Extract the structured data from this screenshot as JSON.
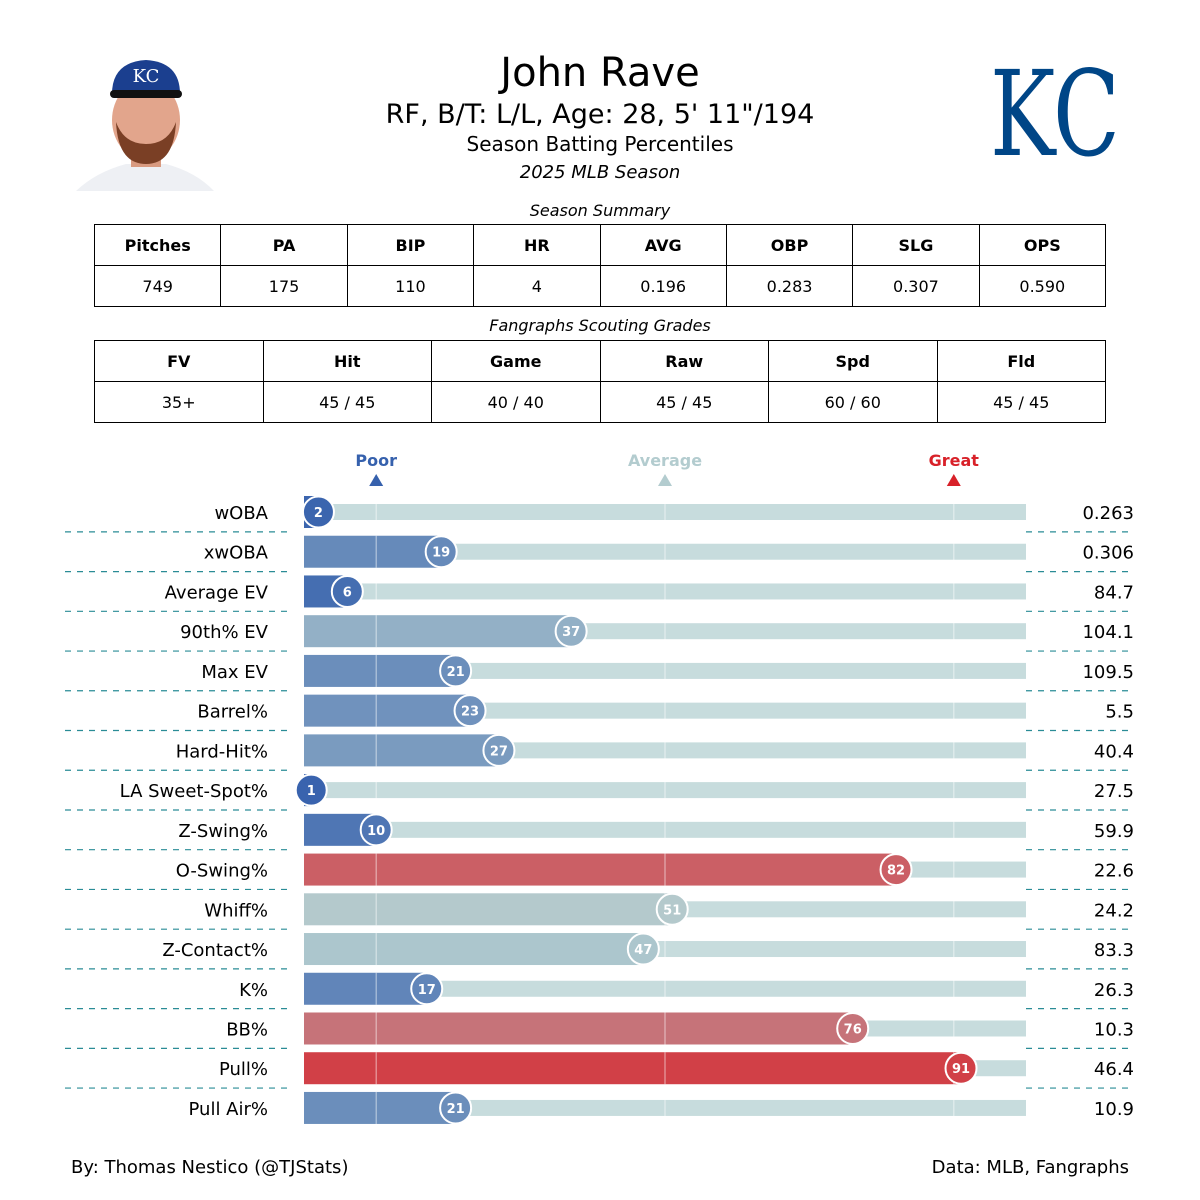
{
  "header": {
    "name": "John Rave",
    "bio": "RF, B/T: L/L, Age: 28, 5' 11\"/194",
    "subtitle": "Season Batting Percentiles",
    "season": "2025 MLB Season",
    "team_logo_text": "KC",
    "team_color": "#004687"
  },
  "season_summary": {
    "title": "Season Summary",
    "headers": [
      "Pitches",
      "PA",
      "BIP",
      "HR",
      "AVG",
      "OBP",
      "SLG",
      "OPS"
    ],
    "values": [
      "749",
      "175",
      "110",
      "4",
      "0.196",
      "0.283",
      "0.307",
      "0.590"
    ]
  },
  "scouting": {
    "title": "Fangraphs Scouting Grades",
    "headers": [
      "FV",
      "Hit",
      "Game",
      "Raw",
      "Spd",
      "Fld"
    ],
    "values": [
      "35+",
      "45 / 45",
      "40 / 40",
      "45 / 45",
      "60 / 60",
      "45 / 45"
    ]
  },
  "chart_data": {
    "type": "bar",
    "orientation": "horizontal",
    "xlim": [
      0,
      100
    ],
    "markers": [
      {
        "label": "Poor",
        "value": 10,
        "color": "#3661ad"
      },
      {
        "label": "Average",
        "value": 50,
        "color": "#b3cccf"
      },
      {
        "label": "Great",
        "value": 90,
        "color": "#d82129"
      }
    ],
    "categories": [
      "wOBA",
      "xwOBA",
      "Average EV",
      "90th% EV",
      "Max EV",
      "Barrel%",
      "Hard-Hit%",
      "LA Sweet-Spot%",
      "Z-Swing%",
      "O-Swing%",
      "Whiff%",
      "Z-Contact%",
      "K%",
      "BB%",
      "Pull%",
      "Pull Air%"
    ],
    "percentiles": [
      2,
      19,
      6,
      37,
      21,
      23,
      27,
      1,
      10,
      82,
      51,
      47,
      17,
      76,
      91,
      21
    ],
    "stat_values": [
      "0.263",
      "0.306",
      "84.7",
      "104.1",
      "109.5",
      "5.5",
      "40.4",
      "27.5",
      "59.9",
      "22.6",
      "24.2",
      "83.3",
      "26.3",
      "10.3",
      "46.4",
      "10.9"
    ],
    "colors": {
      "low": "#3661ad",
      "mid": "#b3cccf",
      "high": "#d82129",
      "track": "#c7dcdd",
      "divider": "#2a8c96"
    }
  },
  "footer": {
    "credit": "By: Thomas Nestico (@TJStats)",
    "source": "Data: MLB, Fangraphs"
  }
}
